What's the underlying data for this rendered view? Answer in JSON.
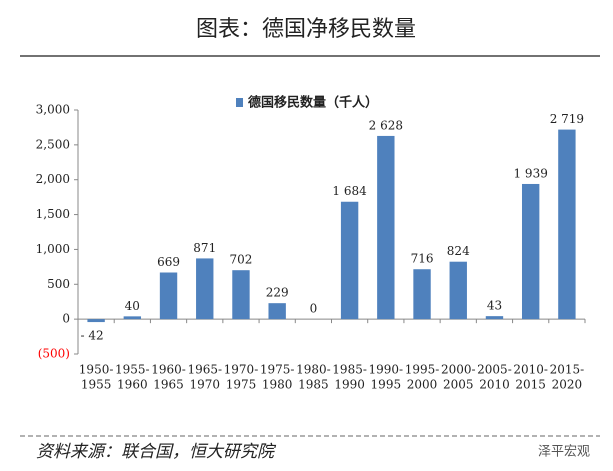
{
  "chart_data": {
    "type": "bar",
    "title": "图表：德国净移民数量",
    "source": "资料来源：联合国，恒大研究院",
    "watermark": "泽平宏观",
    "categories": [
      [
        "1950-",
        "1955"
      ],
      [
        "1955-",
        "1960"
      ],
      [
        "1960-",
        "1965"
      ],
      [
        "1965-",
        "1970"
      ],
      [
        "1970-",
        "1975"
      ],
      [
        "1975-",
        "1980"
      ],
      [
        "1980-",
        "1985"
      ],
      [
        "1985-",
        "1990"
      ],
      [
        "1990-",
        "1995"
      ],
      [
        "1995-",
        "2000"
      ],
      [
        "2000-",
        "2005"
      ],
      [
        "2005-",
        "2010"
      ],
      [
        "2010-",
        "2015"
      ],
      [
        "2015-",
        "2020"
      ]
    ],
    "series": [
      {
        "name": "德国移民数量（千人）",
        "color": "#4f81bd",
        "values": [
          -42,
          40,
          669,
          871,
          702,
          229,
          0,
          1684,
          2628,
          716,
          824,
          43,
          1939,
          2719
        ],
        "value_labels": [
          "- 42",
          "40",
          "669",
          "871",
          "702",
          "229",
          "0",
          "1 684",
          "2 628",
          "716",
          "824",
          "43",
          "1 939",
          "2 719"
        ]
      }
    ],
    "ylim": [
      -500,
      3000
    ],
    "yticks": [
      {
        "value": -500,
        "label": "(500)",
        "color": "#ff0000"
      },
      0,
      {
        "value": 500,
        "label": "500"
      },
      {
        "value": 1000,
        "label": "1,000"
      },
      {
        "value": 1500,
        "label": "1,500"
      },
      {
        "value": 2000,
        "label": "2,000"
      },
      {
        "value": 2500,
        "label": "2,500"
      },
      {
        "value": 3000,
        "label": "3,000"
      }
    ],
    "legend": "top"
  }
}
